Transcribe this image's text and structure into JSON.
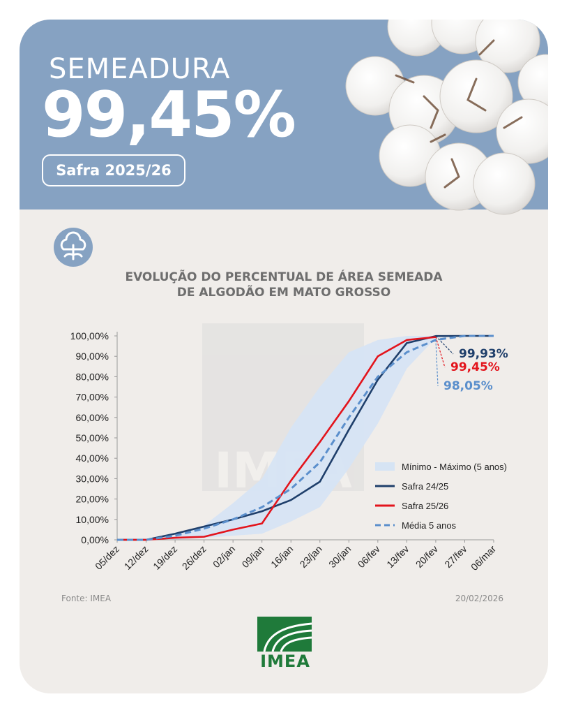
{
  "header": {
    "kicker": "SEMEADURA",
    "percent": "99,45%",
    "season": "Safra 2025/26",
    "bg_color": "#86a2c2"
  },
  "chart_title_line1": "EVOLUÇÃO DO PERCENTUAL DE ÁREA SEMEADA",
  "chart_title_line2": "DE ALGODÃO EM MATO GROSSO",
  "chart_data": {
    "type": "line",
    "categories": [
      "05/dez",
      "12/dez",
      "19/dez",
      "26/dez",
      "02/jan",
      "09/jan",
      "16/jan",
      "23/jan",
      "30/jan",
      "06/fev",
      "13/fev",
      "20/fev",
      "27/fev",
      "06/mar"
    ],
    "y_ticks": [
      "0,00%",
      "10,00%",
      "20,00%",
      "30,00%",
      "40,00%",
      "50,00%",
      "60,00%",
      "70,00%",
      "80,00%",
      "90,00%",
      "100,00%"
    ],
    "ylim": [
      0,
      100
    ],
    "band": {
      "name": "Mínimo - Máximo (5 anos)",
      "color": "#d6e4f4",
      "min": [
        0,
        0,
        0,
        1,
        2,
        3,
        9,
        16,
        35,
        57,
        84,
        99,
        100,
        100
      ],
      "max": [
        0,
        0,
        2,
        7,
        18,
        30,
        55,
        75,
        92,
        98,
        100,
        100,
        100,
        100
      ]
    },
    "series": [
      {
        "name": "Safra 24/25",
        "color": "#1f3f6b",
        "dashed": false,
        "values": [
          0,
          0,
          3,
          6.5,
          10,
          14,
          19.5,
          28.5,
          54,
          78.5,
          96.5,
          99.93,
          100,
          100
        ]
      },
      {
        "name": "Safra 25/26",
        "color": "#e3141c",
        "dashed": false,
        "values": [
          0,
          0,
          1,
          1.5,
          5,
          8,
          29,
          48,
          68,
          90,
          98,
          99.45,
          null,
          null
        ]
      },
      {
        "name": "Média 5 anos",
        "color": "#5b8fcc",
        "dashed": true,
        "values": [
          0,
          0,
          2,
          5.5,
          10,
          16,
          25,
          38,
          60,
          80,
          92,
          98.05,
          100,
          100
        ]
      }
    ],
    "annotations": [
      {
        "text": "99,93%",
        "color": "#1f3f6b"
      },
      {
        "text": "99,45%",
        "color": "#e3141c"
      },
      {
        "text": "98,05%",
        "color": "#5b8fcc"
      }
    ]
  },
  "footer": {
    "source": "Fonte: IMEA",
    "date": "20/02/2026",
    "logo_text": "IMEA"
  },
  "icons": {
    "cotton_boll": "cotton-icon",
    "brand": "imea-logo"
  }
}
